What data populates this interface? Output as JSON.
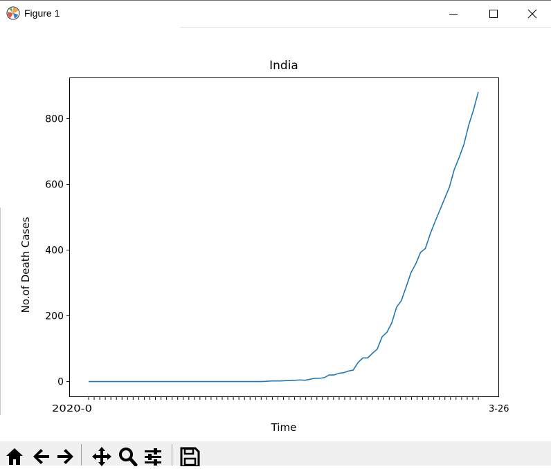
{
  "window": {
    "title": "Figure 1",
    "icon": "matplotlib-icon",
    "controls": [
      "minimize-icon",
      "maximize-icon",
      "close-icon"
    ]
  },
  "toolbar": {
    "buttons": [
      "home-icon",
      "back-arrow-icon",
      "forward-arrow-icon",
      "pan-move-icon",
      "zoom-magnifier-icon",
      "configure-subplots-icon",
      "save-floppy-icon"
    ]
  },
  "chart_data": {
    "type": "line",
    "title": "India",
    "xlabel": "Time",
    "ylabel": "No.of Death Cases",
    "ylim": [
      -45,
      925
    ],
    "yticks": [
      0,
      200,
      400,
      600,
      800
    ],
    "grid": false,
    "legend": "none",
    "x_tick_count": 71,
    "x_tick_label_fragments": [
      "2020-0",
      "3-26"
    ],
    "series": [
      {
        "color": "#1f77b4",
        "values": [
          0,
          0,
          0,
          0,
          0,
          0,
          0,
          0,
          0,
          0,
          0,
          0,
          0,
          0,
          0,
          0,
          0,
          0,
          0,
          0,
          0,
          0,
          0,
          0,
          0,
          0,
          0,
          0,
          0,
          0,
          0,
          0,
          0,
          0,
          0,
          0,
          0,
          1,
          2,
          2,
          2,
          3,
          3,
          4,
          5,
          4,
          7,
          10,
          10,
          12,
          20,
          20,
          25,
          27,
          32,
          35,
          58,
          72,
          72,
          86,
          99,
          136,
          150,
          178,
          226,
          246,
          288,
          331,
          358,
          393,
          405,
          449,
          486,
          521,
          557,
          592,
          645,
          681,
          721,
          780,
          826,
          881
        ]
      }
    ]
  }
}
